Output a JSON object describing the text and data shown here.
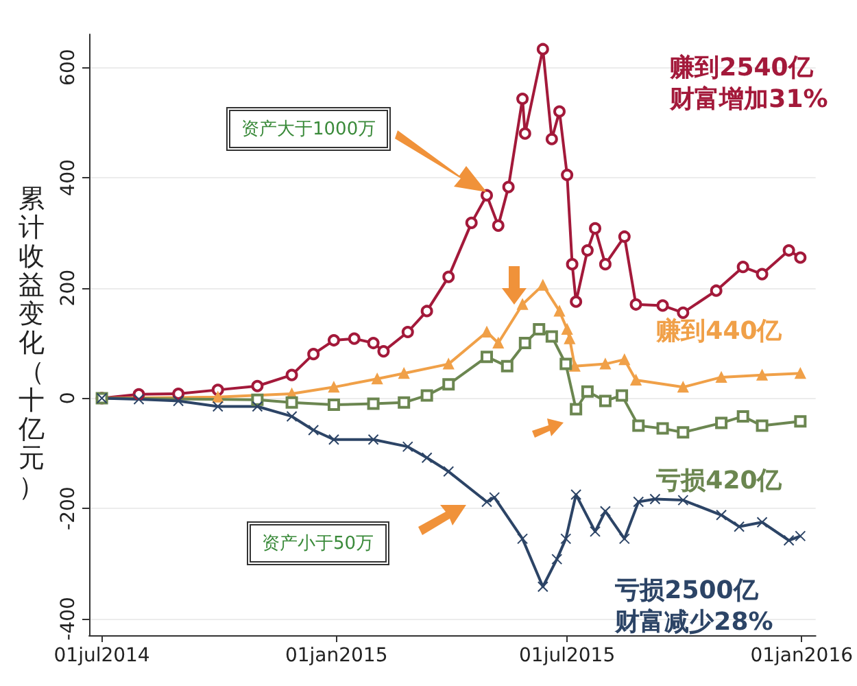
{
  "chart_data": {
    "type": "line",
    "ylabel": "累计收益变化（十亿元）",
    "xlim": [
      "2014-06-21",
      "2016-01-12"
    ],
    "xticks": [
      {
        "value": "2014-07-01",
        "label": "01jul2014"
      },
      {
        "value": "2015-01-01",
        "label": "01jan2015"
      },
      {
        "value": "2015-07-01",
        "label": "01jul2015"
      },
      {
        "value": "2016-01-01",
        "label": "01jan2016"
      }
    ],
    "ylim": [
      -430,
      660
    ],
    "yticks": [
      -400,
      -200,
      0,
      200,
      400,
      600
    ],
    "grid": "y",
    "legend": false,
    "line_style": "solid",
    "annotations": [
      "资产大于1000万",
      "资产小于50万"
    ],
    "series": [
      {
        "name": "赚到2540亿财富增加31%",
        "color": "#a3193a",
        "marker": "circle",
        "x": [
          "2014-07-01",
          "2014-07-30",
          "2014-08-30",
          "2014-09-30",
          "2014-10-31",
          "2014-11-27",
          "2014-12-14",
          "2014-12-30",
          "2015-01-15",
          "2015-01-30",
          "2015-02-07",
          "2015-02-26",
          "2015-03-13",
          "2015-03-30",
          "2015-04-17",
          "2015-04-29",
          "2015-05-08",
          "2015-05-16",
          "2015-05-27",
          "2015-05-29",
          "2015-06-12",
          "2015-06-19",
          "2015-06-25",
          "2015-07-01",
          "2015-07-05",
          "2015-07-08",
          "2015-07-17",
          "2015-07-23",
          "2015-07-31",
          "2015-08-15",
          "2015-08-24",
          "2015-09-14",
          "2015-09-30",
          "2015-10-26",
          "2015-11-16",
          "2015-12-01",
          "2015-12-22",
          "2015-12-31"
        ],
        "values": [
          0,
          7,
          8,
          15,
          22,
          42,
          80,
          105,
          108,
          100,
          85,
          120,
          158,
          220,
          318,
          368,
          313,
          383,
          543,
          480,
          633,
          470,
          520,
          405,
          243,
          175,
          268,
          308,
          243,
          293,
          170,
          168,
          155,
          195,
          238,
          225,
          268,
          255
        ]
      },
      {
        "name": "赚到440亿",
        "color": "#f0a048",
        "marker": "triangle",
        "x": [
          "2014-07-01",
          "2014-09-30",
          "2014-11-27",
          "2014-12-30",
          "2015-02-02",
          "2015-02-23",
          "2015-03-30",
          "2015-04-29",
          "2015-05-08",
          "2015-05-27",
          "2015-06-12",
          "2015-06-25",
          "2015-07-01",
          "2015-07-03",
          "2015-07-07",
          "2015-07-31",
          "2015-08-15",
          "2015-08-24",
          "2015-09-30",
          "2015-10-30",
          "2015-12-01",
          "2015-12-31"
        ],
        "values": [
          0,
          2,
          8,
          20,
          35,
          45,
          62,
          120,
          100,
          170,
          205,
          158,
          125,
          108,
          58,
          62,
          70,
          33,
          20,
          38,
          42,
          45
        ]
      },
      {
        "name": "亏损420亿",
        "color": "#6b8650",
        "marker": "square",
        "x": [
          "2014-07-01",
          "2014-10-31",
          "2014-11-27",
          "2014-12-30",
          "2015-01-30",
          "2015-02-23",
          "2015-03-13",
          "2015-03-30",
          "2015-04-29",
          "2015-05-15",
          "2015-05-29",
          "2015-06-09",
          "2015-06-19",
          "2015-06-30",
          "2015-07-08",
          "2015-07-17",
          "2015-07-31",
          "2015-08-13",
          "2015-08-26",
          "2015-09-14",
          "2015-09-30",
          "2015-10-30",
          "2015-11-16",
          "2015-12-01",
          "2015-12-31"
        ],
        "values": [
          0,
          -3,
          -8,
          -12,
          -10,
          -8,
          5,
          25,
          75,
          58,
          100,
          125,
          112,
          62,
          -20,
          12,
          -5,
          5,
          -50,
          -55,
          -62,
          -45,
          -33,
          -50,
          -42
        ]
      },
      {
        "name": "亏损2500亿财富减少28%",
        "color": "#2c4466",
        "marker": "cross",
        "x": [
          "2014-07-01",
          "2014-07-30",
          "2014-08-30",
          "2014-09-30",
          "2014-10-31",
          "2014-11-27",
          "2014-12-14",
          "2014-12-30",
          "2015-01-30",
          "2015-02-26",
          "2015-03-13",
          "2015-03-30",
          "2015-04-29",
          "2015-05-05",
          "2015-05-27",
          "2015-06-12",
          "2015-06-23",
          "2015-06-30",
          "2015-07-08",
          "2015-07-23",
          "2015-07-31",
          "2015-08-15",
          "2015-08-26",
          "2015-09-08",
          "2015-09-30",
          "2015-10-30",
          "2015-11-13",
          "2015-12-01",
          "2015-12-22",
          "2015-12-31"
        ],
        "values": [
          0,
          -2,
          -5,
          -15,
          -15,
          -33,
          -58,
          -75,
          -75,
          -88,
          -108,
          -133,
          -188,
          -180,
          -255,
          -342,
          -292,
          -255,
          -175,
          -242,
          -205,
          -255,
          -188,
          -183,
          -185,
          -212,
          -233,
          -225,
          -258,
          -250
        ]
      }
    ]
  }
}
